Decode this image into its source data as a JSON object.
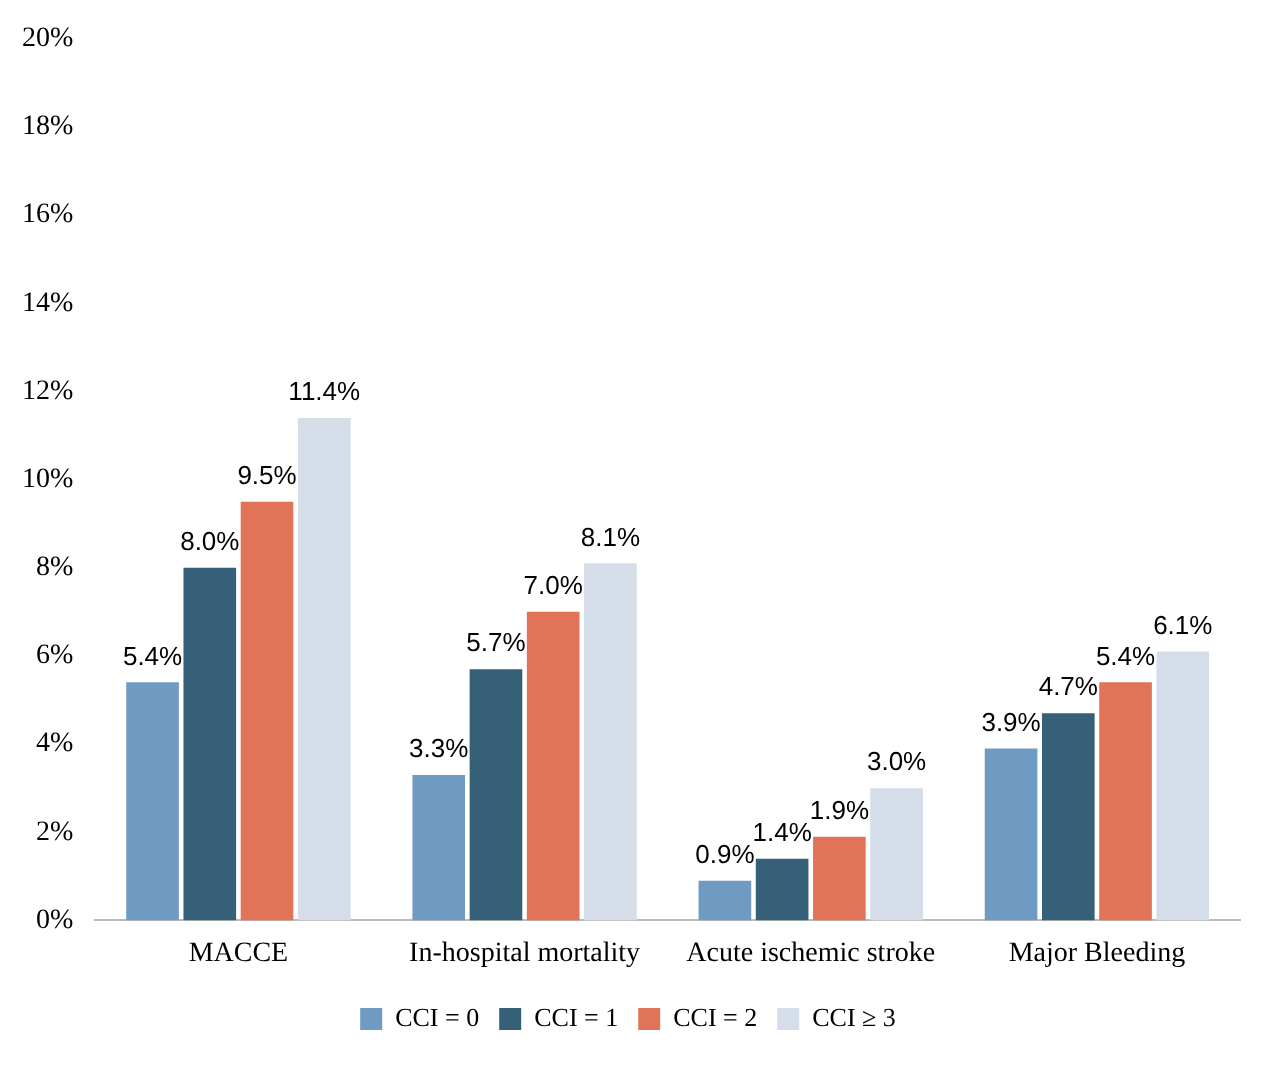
{
  "chart_data": {
    "type": "bar",
    "categories": [
      "MACCE",
      "In-hospital mortality",
      "Acute ischemic stroke",
      "Major Bleeding"
    ],
    "series": [
      {
        "name": "CCI = 0",
        "color": "#6f9bc3",
        "values": [
          5.4,
          3.3,
          0.9,
          3.9
        ],
        "value_labels": [
          "5.4%",
          "3.3%",
          "0.9%",
          "3.9%"
        ]
      },
      {
        "name": "CCI = 1",
        "color": "#365f78",
        "values": [
          8.0,
          5.7,
          1.4,
          4.7
        ],
        "value_labels": [
          "8.0%",
          "5.7%",
          "1.4%",
          "4.7%"
        ]
      },
      {
        "name": "CCI = 2",
        "color": "#e07358",
        "values": [
          9.5,
          7.0,
          1.9,
          5.4
        ],
        "value_labels": [
          "9.5%",
          "7.0%",
          "1.9%",
          "5.4%"
        ]
      },
      {
        "name": "CCI ≥ 3",
        "color": "#d5dde8",
        "values": [
          11.4,
          8.1,
          3.0,
          6.1
        ],
        "value_labels": [
          "11.4%",
          "8.1%",
          "3.0%",
          "6.1%"
        ]
      }
    ],
    "ylim": [
      0,
      20
    ],
    "yticks": [
      {
        "value": 0,
        "label": "0%"
      },
      {
        "value": 2,
        "label": "2%"
      },
      {
        "value": 4,
        "label": "4%"
      },
      {
        "value": 6,
        "label": "6%"
      },
      {
        "value": 8,
        "label": "8%"
      },
      {
        "value": 10,
        "label": "10%"
      },
      {
        "value": 12,
        "label": "12%"
      },
      {
        "value": 14,
        "label": "14%"
      },
      {
        "value": 16,
        "label": "16%"
      },
      {
        "value": 18,
        "label": "18%"
      },
      {
        "value": 20,
        "label": "20%"
      }
    ],
    "grid": false,
    "legend": "bottom"
  }
}
